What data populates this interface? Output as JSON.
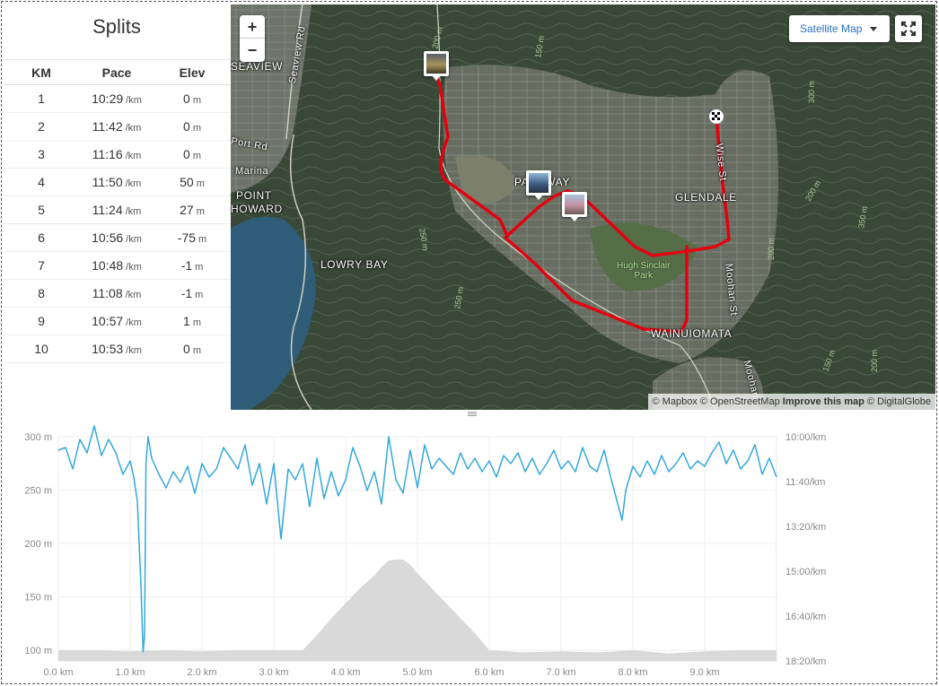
{
  "splits": {
    "title": "Splits",
    "headers": [
      "KM",
      "Pace",
      "Elev"
    ],
    "pace_unit": "/km",
    "elev_unit": "m",
    "rows": [
      {
        "km": "1",
        "pace": "10:29",
        "elev": "0"
      },
      {
        "km": "2",
        "pace": "11:42",
        "elev": "0"
      },
      {
        "km": "3",
        "pace": "11:16",
        "elev": "0"
      },
      {
        "km": "4",
        "pace": "11:50",
        "elev": "50"
      },
      {
        "km": "5",
        "pace": "11:24",
        "elev": "27"
      },
      {
        "km": "6",
        "pace": "10:56",
        "elev": "-75"
      },
      {
        "km": "7",
        "pace": "10:48",
        "elev": "-1"
      },
      {
        "km": "8",
        "pace": "11:08",
        "elev": "-1"
      },
      {
        "km": "9",
        "pace": "10:57",
        "elev": "1"
      },
      {
        "km": "10",
        "pace": "10:53",
        "elev": "0"
      }
    ]
  },
  "map": {
    "zoom_in": "+",
    "zoom_out": "−",
    "map_type": "Satellite Map",
    "attribution": {
      "mapbox": "© Mapbox",
      "osm": "© OpenStreetMap",
      "improve": "Improve this map",
      "digitalglobe": "© DigitalGlobe"
    },
    "place_labels": [
      "Seaview Rd",
      "SEAVIEW",
      "Port Rd",
      "Marina",
      "POINT",
      "HOWARD",
      "LOWRY BAY",
      "PARKWAY",
      "GLENDALE",
      "WAINUIOMATA",
      "Wise St",
      "Moohan St",
      "Moohan"
    ],
    "park_label_line1": "Hugh Sinclair",
    "park_label_line2": "Park",
    "contour_labels": [
      "200 m",
      "150 m",
      "250 m",
      "300 m",
      "200 m",
      "350 m",
      "200 m",
      "150 m",
      "250 m",
      "200 m"
    ],
    "route_color": "#e3000f"
  },
  "chart_data": {
    "type": "line",
    "x_label_unit": "km",
    "x_ticks": [
      "0.0 km",
      "1.0 km",
      "2.0 km",
      "3.0 km",
      "4.0 km",
      "5.0 km",
      "6.0 km",
      "7.0 km",
      "8.0 km",
      "9.0 km"
    ],
    "x_range": [
      0,
      10.0
    ],
    "y_left_ticks": [
      "300 m",
      "250 m",
      "200 m",
      "150 m",
      "100 m"
    ],
    "y_left_range": [
      90,
      300
    ],
    "y_right_ticks": [
      "10:00/km",
      "11:40/km",
      "13:20/km",
      "15:00/km",
      "16:40/km",
      "18:20/km"
    ],
    "series": [
      {
        "name": "Elevation",
        "unit": "m",
        "color": "#d9d9d9",
        "x": [
          0,
          0.5,
          1.0,
          1.5,
          2.0,
          2.5,
          3.0,
          3.4,
          3.6,
          3.8,
          4.0,
          4.2,
          4.4,
          4.5,
          4.6,
          4.7,
          4.8,
          4.9,
          5.0,
          5.2,
          5.4,
          5.6,
          5.8,
          6.0,
          6.5,
          7.0,
          7.5,
          8.0,
          8.5,
          9.0,
          9.5,
          10.0
        ],
        "values": [
          100,
          100,
          99,
          100,
          99,
          100,
          100,
          100,
          114,
          130,
          144,
          158,
          170,
          178,
          184,
          185,
          185,
          180,
          172,
          158,
          144,
          130,
          116,
          100,
          98,
          99,
          98,
          100,
          97,
          99,
          100,
          100
        ]
      },
      {
        "name": "Pace",
        "unit": "/km",
        "color": "#33a8dc",
        "x": [
          0,
          0.1,
          0.2,
          0.3,
          0.4,
          0.5,
          0.6,
          0.7,
          0.8,
          0.9,
          1.0,
          1.05,
          1.1,
          1.15,
          1.18,
          1.2,
          1.22,
          1.25,
          1.3,
          1.4,
          1.5,
          1.6,
          1.7,
          1.8,
          1.9,
          2.0,
          2.1,
          2.2,
          2.3,
          2.4,
          2.5,
          2.6,
          2.7,
          2.8,
          2.9,
          3.0,
          3.1,
          3.2,
          3.3,
          3.4,
          3.5,
          3.6,
          3.7,
          3.8,
          3.9,
          4.0,
          4.1,
          4.2,
          4.3,
          4.4,
          4.5,
          4.6,
          4.7,
          4.8,
          4.9,
          5.0,
          5.1,
          5.2,
          5.3,
          5.4,
          5.5,
          5.6,
          5.7,
          5.8,
          5.9,
          6.0,
          6.1,
          6.2,
          6.3,
          6.4,
          6.5,
          6.6,
          6.7,
          6.8,
          6.9,
          7.0,
          7.1,
          7.2,
          7.3,
          7.4,
          7.5,
          7.6,
          7.7,
          7.8,
          7.85,
          7.9,
          8.0,
          8.1,
          8.2,
          8.3,
          8.4,
          8.5,
          8.6,
          8.7,
          8.8,
          8.9,
          9.0,
          9.1,
          9.2,
          9.3,
          9.4,
          9.5,
          9.6,
          9.7,
          9.8,
          9.9,
          10.0
        ],
        "values": [
          10.5,
          10.4,
          11.2,
          10.1,
          10.6,
          9.6,
          10.7,
          10.1,
          10.6,
          11.4,
          10.9,
          11.5,
          12.4,
          15.5,
          18.0,
          17.4,
          11.0,
          10.0,
          10.8,
          11.4,
          11.9,
          11.3,
          11.7,
          11.1,
          12.1,
          11.0,
          11.5,
          11.2,
          10.4,
          10.8,
          11.2,
          10.3,
          11.8,
          11.0,
          12.5,
          11.0,
          13.8,
          11.2,
          11.6,
          11.0,
          12.6,
          10.8,
          12.3,
          11.3,
          12.2,
          11.6,
          10.4,
          11.1,
          12.0,
          11.3,
          12.5,
          10.0,
          11.6,
          12.1,
          10.5,
          11.9,
          10.3,
          11.2,
          10.8,
          11.1,
          11.4,
          10.6,
          11.2,
          10.8,
          11.3,
          10.9,
          11.5,
          10.7,
          11.0,
          10.6,
          11.3,
          10.8,
          11.4,
          11.0,
          10.5,
          11.2,
          10.9,
          11.3,
          10.4,
          11.1,
          11.3,
          10.5,
          11.6,
          12.6,
          13.1,
          12.0,
          11.1,
          11.5,
          10.9,
          11.4,
          10.7,
          11.3,
          11.0,
          10.6,
          11.2,
          10.9,
          11.1,
          10.6,
          10.2,
          11.0,
          10.5,
          11.2,
          10.9,
          10.3,
          11.4,
          10.8,
          11.5
        ]
      }
    ],
    "pace_axis_minutes": [
      10.0,
      18.333
    ]
  }
}
